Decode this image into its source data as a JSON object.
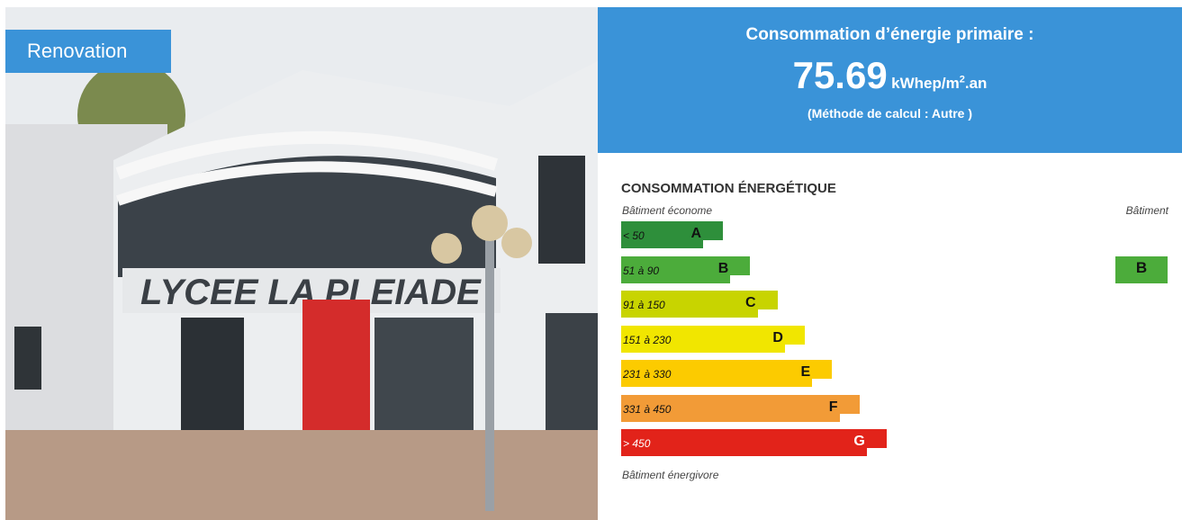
{
  "photo": {
    "badge": "Renovation",
    "sign": "LYCEE LA PLEIADE"
  },
  "summary": {
    "title": "Consommation d’énergie primaire :",
    "value": "75.69",
    "unit": "kWhep/m",
    "unit_sup": "2",
    "unit_suffix": ".an",
    "method": "(Méthode de calcul : Autre )"
  },
  "label": {
    "heading": "CONSOMMATION ÉNERGÉTIQUE",
    "top_note": "Bâtiment économe",
    "building_heading": "Bâtiment",
    "bottom_note": "Bâtiment énergivore",
    "classes": [
      {
        "range": "< 50",
        "letter": "A",
        "color": "#2e8f3b"
      },
      {
        "range": "51 à 90",
        "letter": "B",
        "color": "#4cac3b"
      },
      {
        "range": "91 à 150",
        "letter": "C",
        "color": "#c8d400"
      },
      {
        "range": "151 à 230",
        "letter": "D",
        "color": "#f1e600"
      },
      {
        "range": "231 à 330",
        "letter": "E",
        "color": "#fccb00"
      },
      {
        "range": "331 à 450",
        "letter": "F",
        "color": "#f29b37"
      },
      {
        "range": "> 450",
        "letter": "G",
        "color": "#e2231a"
      }
    ],
    "current": "B",
    "current_color": "#4cac3b"
  }
}
